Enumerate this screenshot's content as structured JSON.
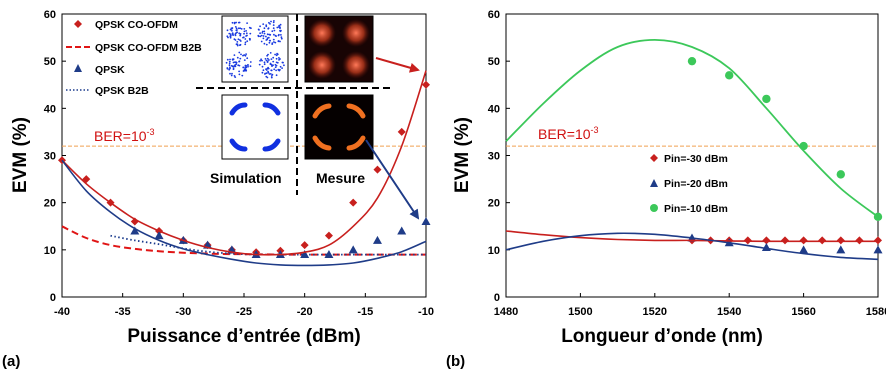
{
  "panel_labels": [
    "(a)",
    "(b)"
  ],
  "inset_labels": {
    "simulation": "Simulation",
    "measure": "Mesure"
  },
  "colors": {
    "red": "#c8201e",
    "dark_blue": "#1f3c88",
    "navy": "#1a3a8c",
    "dashed_red": "#e01515",
    "green": "#3cc85a",
    "ber_line": "#f0a050",
    "ber_text": "#d01010"
  },
  "chart_data": [
    {
      "type": "line",
      "xlabel": "Puissance d’entrée (dBm)",
      "ylabel": "EVM (%)",
      "xlim": [
        -40,
        -10
      ],
      "ylim": [
        0,
        60
      ],
      "xticks": [
        "-40",
        "-35",
        "-30",
        "-25",
        "-20",
        "-15",
        "-10"
      ],
      "yticks": [
        "0",
        "10",
        "20",
        "30",
        "40",
        "50",
        "60"
      ],
      "grid": false,
      "legend_position": "top-left",
      "annotation": {
        "text": "BER=10",
        "superscript": "-3",
        "y": 32
      },
      "series": [
        {
          "name": "QPSK CO-OFDM",
          "style": "markers-diamond",
          "x": [
            -40,
            -38,
            -36,
            -34,
            -32,
            -30,
            -28,
            -26,
            -24,
            -22,
            -20,
            -18,
            -16,
            -14,
            -12,
            -10
          ],
          "values": [
            29,
            25,
            20,
            16,
            14,
            12,
            11,
            10,
            9.5,
            9.8,
            11,
            13,
            20,
            27,
            35,
            45
          ]
        },
        {
          "name": "QPSK CO-OFDM B2B",
          "style": "dashed-line",
          "x": [
            -40,
            -38,
            -36,
            -34,
            -32,
            -30,
            -28,
            -26,
            -24,
            -22,
            -20,
            -18,
            -16,
            -14,
            -12,
            -10
          ],
          "values": [
            15,
            12.5,
            11,
            10.2,
            9.7,
            9.4,
            9.2,
            9.1,
            9.05,
            9.0,
            9.0,
            9.0,
            9.0,
            9.0,
            9.0,
            9.0
          ]
        },
        {
          "name": "QPSK",
          "style": "markers-triangle",
          "x": [
            -34,
            -32,
            -30,
            -28,
            -26,
            -24,
            -22,
            -20,
            -18,
            -16,
            -14,
            -12,
            -10
          ],
          "values": [
            14,
            13,
            12,
            11,
            10,
            9,
            9,
            9,
            9,
            10,
            12,
            14,
            16
          ]
        },
        {
          "name": "QPSK B2B",
          "style": "dotted-line",
          "x": [
            -36,
            -34,
            -32,
            -30,
            -28,
            -26,
            -24,
            -22,
            -20,
            -18,
            -16,
            -14,
            -12,
            -10
          ],
          "values": [
            13,
            12,
            11.2,
            10.3,
            9.6,
            9.2,
            9.0,
            9.0,
            9.0,
            9.0,
            9.0,
            9.0,
            9.0,
            9.0
          ]
        },
        {
          "name": "",
          "style": "solid-line-red",
          "x": [
            -40,
            -38,
            -36,
            -34,
            -32,
            -30,
            -28,
            -26,
            -24,
            -22,
            -20,
            -18,
            -16,
            -14,
            -12,
            -10
          ],
          "values": [
            29,
            24,
            20,
            16.5,
            14,
            12,
            10.5,
            9.5,
            9.0,
            9.0,
            9.5,
            11,
            15,
            21,
            32,
            48
          ]
        },
        {
          "name": "",
          "style": "solid-line-blue",
          "x": [
            -40,
            -38,
            -36,
            -34,
            -32,
            -30,
            -28,
            -26,
            -24,
            -22,
            -20,
            -18,
            -16,
            -14,
            -12,
            -10
          ],
          "values": [
            29,
            22.5,
            18,
            14.5,
            12,
            10.2,
            9.0,
            8.0,
            7.2,
            6.8,
            6.7,
            6.8,
            7.2,
            8.2,
            9.6,
            11.8
          ]
        }
      ]
    },
    {
      "type": "line",
      "xlabel": "Longueur d’onde (nm)",
      "ylabel": "EVM (%)",
      "xlim": [
        1480,
        1580
      ],
      "ylim": [
        0,
        60
      ],
      "xticks": [
        "1480",
        "1500",
        "1520",
        "1540",
        "1560",
        "1580"
      ],
      "yticks": [
        "0",
        "10",
        "20",
        "30",
        "40",
        "50",
        "60"
      ],
      "grid": false,
      "legend_position": "center-left",
      "annotation": {
        "text": "BER=10",
        "superscript": "-3",
        "y": 32
      },
      "series": [
        {
          "name": "Pin=-30 dBm",
          "style": "markers-diamond",
          "x": [
            1530,
            1535,
            1540,
            1545,
            1550,
            1555,
            1560,
            1565,
            1570,
            1575,
            1580
          ],
          "values": [
            12,
            12,
            12,
            12,
            12,
            12,
            12,
            12,
            12,
            12,
            12
          ]
        },
        {
          "name": "Pin=-20 dBm",
          "style": "markers-triangle",
          "x": [
            1530,
            1540,
            1550,
            1560,
            1570,
            1580
          ],
          "values": [
            12.5,
            11.5,
            10.5,
            10,
            10,
            10
          ]
        },
        {
          "name": "Pin=-10 dBm",
          "style": "markers-circle",
          "x": [
            1530,
            1540,
            1550,
            1560,
            1570,
            1580
          ],
          "values": [
            50,
            47,
            42,
            32,
            26,
            17
          ]
        },
        {
          "name": "",
          "style": "solid-line-green",
          "x": [
            1480,
            1490,
            1500,
            1510,
            1520,
            1530,
            1540,
            1550,
            1560,
            1570,
            1580
          ],
          "values": [
            33,
            41,
            48,
            53,
            54.5,
            53,
            48.5,
            40,
            31,
            23,
            17
          ]
        },
        {
          "name": "",
          "style": "solid-line-red",
          "x": [
            1480,
            1490,
            1500,
            1510,
            1520,
            1530,
            1540,
            1550,
            1560,
            1570,
            1580
          ],
          "values": [
            14,
            13.2,
            12.6,
            12.2,
            12.0,
            12.0,
            11.9,
            11.8,
            11.8,
            11.8,
            11.8
          ]
        },
        {
          "name": "",
          "style": "solid-line-blue",
          "x": [
            1480,
            1490,
            1500,
            1510,
            1520,
            1530,
            1540,
            1550,
            1560,
            1570,
            1580
          ],
          "values": [
            10,
            11.8,
            13,
            13.5,
            13.3,
            12.5,
            11.5,
            10.3,
            9.2,
            8.4,
            8.0
          ]
        }
      ]
    }
  ]
}
